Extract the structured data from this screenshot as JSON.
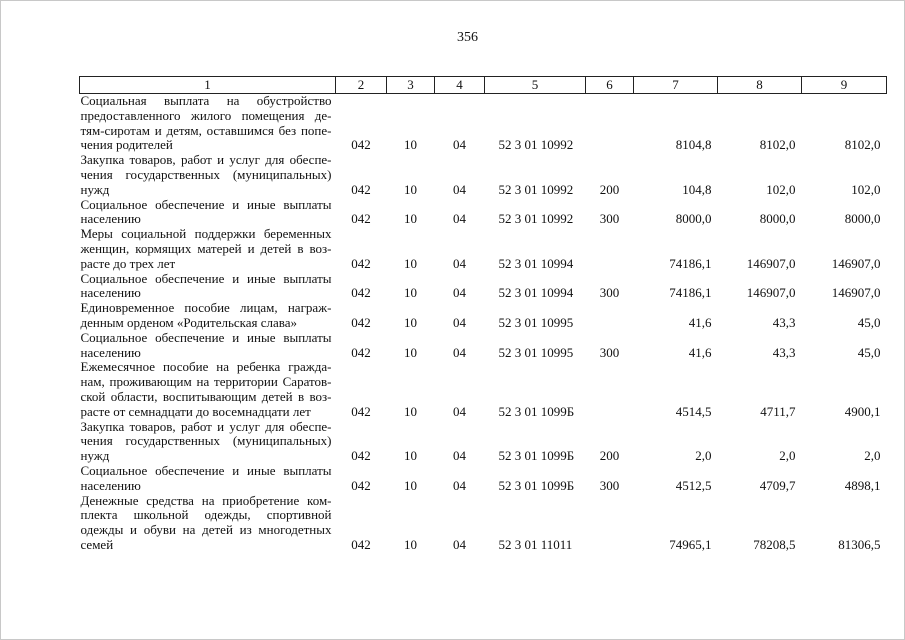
{
  "page_number": "356",
  "columns": [
    "1",
    "2",
    "3",
    "4",
    "5",
    "6",
    "7",
    "8",
    "9"
  ],
  "rows": [
    {
      "desc": [
        "Социальная выплата на обустройство",
        "предоставленного жилого помещения де-",
        "тям-сиротам и детям, оставшимся без попе-",
        "чения родителей"
      ],
      "c2": "042",
      "c3": "10",
      "c4": "04",
      "c5": "52 3 01 10992",
      "c6": "",
      "c7": "8104,8",
      "c8": "8102,0",
      "c9": "8102,0"
    },
    {
      "desc": [
        "Закупка товаров, работ и услуг для обеспе-",
        "чения государственных (муниципальных)",
        "нужд"
      ],
      "c2": "042",
      "c3": "10",
      "c4": "04",
      "c5": "52 3 01 10992",
      "c6": "200",
      "c7": "104,8",
      "c8": "102,0",
      "c9": "102,0"
    },
    {
      "desc": [
        "Социальное обеспечение и иные выплаты",
        "населению"
      ],
      "c2": "042",
      "c3": "10",
      "c4": "04",
      "c5": "52 3 01 10992",
      "c6": "300",
      "c7": "8000,0",
      "c8": "8000,0",
      "c9": "8000,0"
    },
    {
      "desc": [
        "Меры социальной поддержки беременных",
        "женщин, кормящих матерей и детей в воз-",
        "расте до трех лет"
      ],
      "c2": "042",
      "c3": "10",
      "c4": "04",
      "c5": "52 3 01 10994",
      "c6": "",
      "c7": "74186,1",
      "c8": "146907,0",
      "c9": "146907,0"
    },
    {
      "desc": [
        "Социальное обеспечение и иные выплаты",
        "населению"
      ],
      "c2": "042",
      "c3": "10",
      "c4": "04",
      "c5": "52 3 01 10994",
      "c6": "300",
      "c7": "74186,1",
      "c8": "146907,0",
      "c9": "146907,0"
    },
    {
      "desc": [
        "Единовременное пособие лицам, награж-",
        "денным орденом «Родительская слава»"
      ],
      "c2": "042",
      "c3": "10",
      "c4": "04",
      "c5": "52 3 01 10995",
      "c6": "",
      "c7": "41,6",
      "c8": "43,3",
      "c9": "45,0"
    },
    {
      "desc": [
        "Социальное обеспечение и иные выплаты",
        "населению"
      ],
      "c2": "042",
      "c3": "10",
      "c4": "04",
      "c5": "52 3 01 10995",
      "c6": "300",
      "c7": "41,6",
      "c8": "43,3",
      "c9": "45,0"
    },
    {
      "desc": [
        "Ежемесячное пособие на ребенка гражда-",
        "нам, проживающим на территории Саратов-",
        "ской области, воспитывающим детей в воз-",
        "расте от семнадцати до восемнадцати лет"
      ],
      "c2": "042",
      "c3": "10",
      "c4": "04",
      "c5": "52 3 01 1099Б",
      "c6": "",
      "c7": "4514,5",
      "c8": "4711,7",
      "c9": "4900,1"
    },
    {
      "desc": [
        "Закупка товаров, работ и услуг для обеспе-",
        "чения государственных (муниципальных)",
        "нужд"
      ],
      "c2": "042",
      "c3": "10",
      "c4": "04",
      "c5": "52 3 01 1099Б",
      "c6": "200",
      "c7": "2,0",
      "c8": "2,0",
      "c9": "2,0"
    },
    {
      "desc": [
        "Социальное обеспечение и иные выплаты",
        "населению"
      ],
      "c2": "042",
      "c3": "10",
      "c4": "04",
      "c5": "52 3 01 1099Б",
      "c6": "300",
      "c7": "4512,5",
      "c8": "4709,7",
      "c9": "4898,1"
    },
    {
      "desc": [
        "Денежные средства на приобретение ком-",
        "плекта школьной одежды, спортивной",
        "одежды и обуви на детей из многодетных",
        "семей"
      ],
      "c2": "042",
      "c3": "10",
      "c4": "04",
      "c5": "52 3 01 11011",
      "c6": "",
      "c7": "74965,1",
      "c8": "78208,5",
      "c9": "81306,5"
    }
  ]
}
